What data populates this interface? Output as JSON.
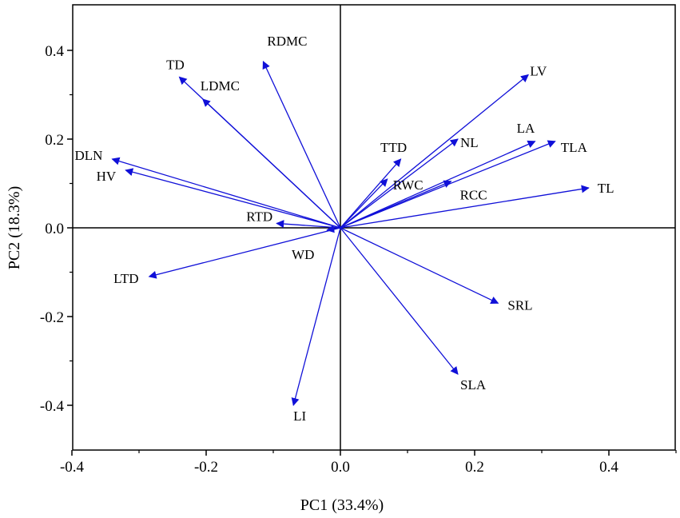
{
  "chart_data": {
    "type": "biplot",
    "title": "",
    "xlabel": "PC1 (33.4%)",
    "ylabel": "PC2 (18.3%)",
    "xlim": [
      -0.4,
      0.5
    ],
    "ylim": [
      -0.5,
      0.5
    ],
    "xticks": [
      -0.4,
      -0.2,
      0.0,
      0.2,
      0.4
    ],
    "xtick_labels": [
      "-0.4",
      "-0.2",
      "0.0",
      "0.2",
      "0.4"
    ],
    "yticks": [
      -0.4,
      -0.2,
      0.0,
      0.2,
      0.4
    ],
    "ytick_labels": [
      "-0.4",
      "-0.2",
      "0.0",
      "0.2",
      "0.4"
    ],
    "arrow_color": "#1010d8",
    "vectors": [
      {
        "name": "RDMC",
        "x": -0.115,
        "y": 0.375
      },
      {
        "name": "TD",
        "x": -0.24,
        "y": 0.34
      },
      {
        "name": "LDMC",
        "x": -0.205,
        "y": 0.29
      },
      {
        "name": "DLN",
        "x": -0.34,
        "y": 0.155
      },
      {
        "name": "HV",
        "x": -0.32,
        "y": 0.13
      },
      {
        "name": "RTD",
        "x": -0.095,
        "y": 0.01
      },
      {
        "name": "WD",
        "x": -0.02,
        "y": -0.005
      },
      {
        "name": "LTD",
        "x": -0.285,
        "y": -0.11
      },
      {
        "name": "LI",
        "x": -0.07,
        "y": -0.4
      },
      {
        "name": "TTD",
        "x": 0.09,
        "y": 0.155
      },
      {
        "name": "RWC",
        "x": 0.07,
        "y": 0.11
      },
      {
        "name": "NL",
        "x": 0.175,
        "y": 0.2
      },
      {
        "name": "LV",
        "x": 0.28,
        "y": 0.345
      },
      {
        "name": "LA",
        "x": 0.29,
        "y": 0.195
      },
      {
        "name": "TLA",
        "x": 0.32,
        "y": 0.195
      },
      {
        "name": "RCC",
        "x": 0.165,
        "y": 0.105
      },
      {
        "name": "TL",
        "x": 0.37,
        "y": 0.09
      },
      {
        "name": "SRL",
        "x": 0.235,
        "y": -0.17
      },
      {
        "name": "SLA",
        "x": 0.175,
        "y": -0.33
      }
    ]
  }
}
